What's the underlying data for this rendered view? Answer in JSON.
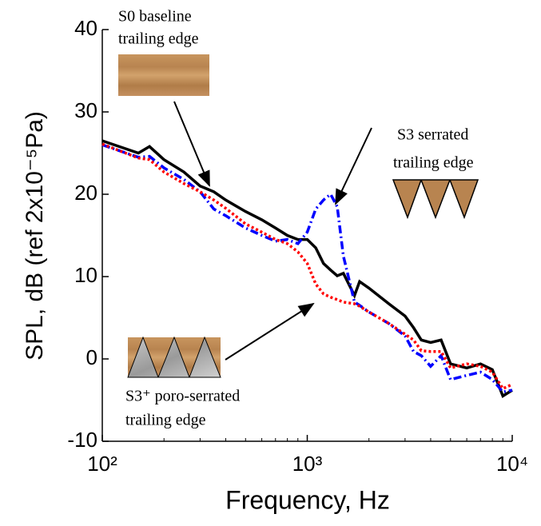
{
  "chart_data": {
    "type": "line",
    "x_label": "Frequency, Hz",
    "y_label": "SPL, dB (ref 2x10⁻⁵Pa)",
    "log_x": true,
    "xlim": [
      100,
      10000
    ],
    "xticks": [
      {
        "value": 100,
        "label": "10²"
      },
      {
        "value": 1000,
        "label": "10³"
      },
      {
        "value": 10000,
        "label": "10⁴"
      }
    ],
    "ylim": [
      -10,
      40
    ],
    "yticks": [
      -10,
      0,
      10,
      20,
      30,
      40
    ],
    "x": [
      100,
      150,
      170,
      200,
      250,
      300,
      350,
      400,
      500,
      600,
      700,
      800,
      900,
      1000,
      1100,
      1200,
      1300,
      1400,
      1500,
      1700,
      1800,
      2000,
      2500,
      3000,
      3300,
      3600,
      4000,
      4500,
      5000,
      6000,
      7000,
      8000,
      9000,
      10000
    ],
    "series": [
      {
        "color": "#000000",
        "style": "solid",
        "values": [
          26.5,
          25,
          25.8,
          24.2,
          22.7,
          21,
          20.3,
          19.3,
          17.9,
          16.9,
          15.9,
          15,
          14.5,
          14.5,
          13.5,
          11.6,
          10.8,
          10.1,
          10.4,
          7.7,
          9.4,
          8.6,
          6.7,
          5.2,
          3.8,
          2.3,
          2,
          2.3,
          -0.6,
          -1.1,
          -0.6,
          -1.3,
          -4.5,
          -3.8
        ]
      },
      {
        "color": "#0000ff",
        "style": "dashdot",
        "values": [
          26,
          24.5,
          24.6,
          23.2,
          21.8,
          20.3,
          18.2,
          17.4,
          15.9,
          15,
          14.3,
          14.5,
          14,
          15.4,
          18.2,
          19.3,
          20,
          18.5,
          12.5,
          6.9,
          6.5,
          5.7,
          4.3,
          2.8,
          0.9,
          0.4,
          -0.9,
          0.4,
          -2.5,
          -2,
          -1.6,
          -2.5,
          -4,
          -3.8
        ]
      },
      {
        "color": "#ff0000",
        "style": "dotted",
        "values": [
          26.1,
          24.4,
          24.2,
          22.7,
          21.3,
          20.3,
          19.3,
          18.3,
          16.4,
          15.4,
          14.5,
          14,
          13,
          11.6,
          9.1,
          7.9,
          7.5,
          7.2,
          6.9,
          6.7,
          6.4,
          5.7,
          4.3,
          3,
          2.3,
          1,
          0.9,
          0.9,
          -1.1,
          -0.6,
          -0.9,
          -1.6,
          -3.6,
          -3.1
        ]
      }
    ],
    "annotations": [
      {
        "lines": [
          "S0 baseline",
          "trailing edge"
        ]
      },
      {
        "lines": [
          "S3 serrated",
          "trailing edge"
        ]
      },
      {
        "lines": [
          "S3⁺ poro-serrated",
          "trailing edge"
        ]
      }
    ]
  }
}
